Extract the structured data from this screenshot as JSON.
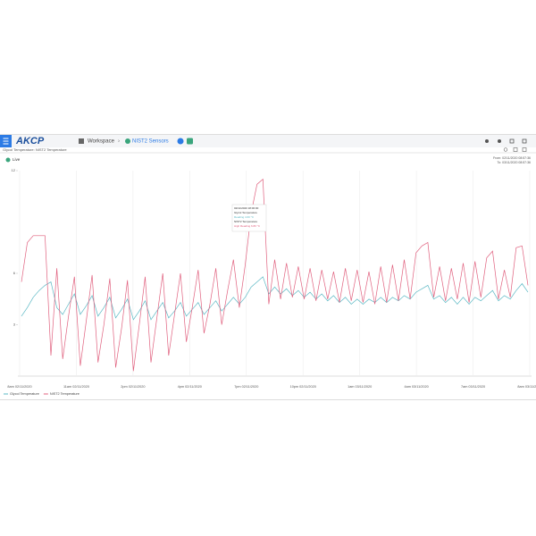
{
  "header": {
    "logo": "AKCP",
    "nav": [
      "Workspace",
      "NIST2 Sensors"
    ]
  },
  "chart_data": {
    "type": "line",
    "title": "Glycol Temperature: NIST2 Temperature",
    "live": "Live",
    "range": [
      "From: 02/11/2020 08:57:36",
      "To: 03/11/2020 08:57:36"
    ],
    "xticks": [
      "8am 02/11/2020",
      "11am 02/11/2020",
      "2pm 02/11/2020",
      "4pm 02/11/2020",
      "7pm 02/11/2020",
      "10pm 02/11/2020",
      "1am 03/11/2020",
      "4am 03/11/2020",
      "7am 03/11/2020",
      "8am 03/11/2020"
    ],
    "ylim": [
      0,
      12
    ],
    "yticks": [
      3,
      6,
      12
    ],
    "grid": true,
    "annotations": [
      "02/11/2020 18:00:00",
      "Glycol Temperature",
      "Reading 4.60 °C",
      "NIST2 Temperature",
      "High Reading 6.80 °C"
    ],
    "series": [
      {
        "name": "Glycol Temperature",
        "color": "#5bb8c4",
        "values": [
          3.5,
          4.0,
          4.6,
          5.0,
          5.3,
          5.5,
          4.0,
          3.6,
          4.2,
          4.8,
          3.6,
          4.1,
          4.7,
          3.5,
          4.0,
          4.6,
          3.4,
          3.9,
          4.5,
          3.3,
          3.8,
          4.4,
          3.3,
          3.8,
          4.3,
          3.4,
          3.8,
          4.3,
          3.5,
          3.9,
          4.3,
          3.6,
          4.0,
          4.4,
          3.8,
          4.2,
          4.6,
          4.2,
          4.6,
          5.2,
          5.5,
          5.8,
          4.8,
          5.2,
          4.8,
          5.1,
          4.7,
          5.0,
          4.6,
          4.9,
          4.5,
          4.8,
          4.4,
          4.7,
          4.3,
          4.6,
          4.2,
          4.5,
          4.2,
          4.5,
          4.3,
          4.6,
          4.3,
          4.6,
          4.4,
          4.7,
          4.5,
          4.9,
          5.1,
          5.3,
          4.5,
          4.7,
          4.3,
          4.6,
          4.2,
          4.6,
          4.2,
          4.6,
          4.4,
          4.7,
          5.0,
          4.4,
          4.7,
          4.5,
          5.0,
          5.4,
          4.9
        ]
      },
      {
        "name": "NIST2 Temperature",
        "color": "#e0607e",
        "values": [
          5.5,
          7.8,
          8.2,
          8.2,
          8.2,
          1.2,
          6.3,
          1.0,
          3.5,
          5.8,
          0.6,
          3.2,
          5.9,
          0.8,
          3.0,
          5.7,
          0.5,
          2.8,
          5.6,
          0.3,
          3.0,
          5.8,
          0.8,
          3.4,
          6.0,
          1.2,
          3.6,
          6.0,
          2.0,
          4.0,
          6.2,
          2.5,
          4.2,
          6.3,
          3.0,
          5.0,
          6.8,
          4.0,
          6.5,
          9.5,
          11.2,
          11.5,
          4.2,
          6.8,
          4.5,
          6.6,
          4.6,
          6.4,
          4.5,
          6.3,
          4.4,
          6.2,
          4.5,
          6.1,
          4.3,
          6.3,
          4.4,
          6.2,
          4.3,
          6.1,
          4.2,
          6.4,
          4.3,
          6.5,
          4.4,
          6.8,
          4.5,
          7.2,
          7.6,
          7.8,
          4.6,
          6.4,
          4.4,
          6.3,
          4.5,
          6.6,
          4.3,
          6.7,
          4.6,
          6.9,
          7.3,
          4.5,
          6.2,
          4.6,
          7.5,
          7.6,
          5.3
        ]
      }
    ]
  }
}
